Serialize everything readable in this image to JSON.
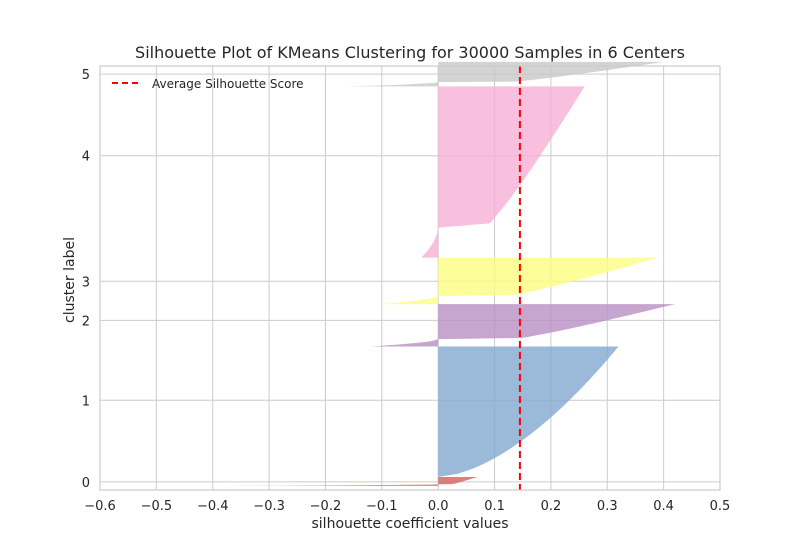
{
  "chart_data": {
    "type": "area",
    "title": "Silhouette Plot of KMeans Clustering for 30000 Samples in 6 Centers",
    "xlabel": "silhouette coefficient values",
    "ylabel": "cluster label",
    "xlim": [
      -0.6,
      0.5
    ],
    "ylim": [
      -0.1,
      5.1
    ],
    "x_ticks": [
      -0.6,
      -0.5,
      -0.4,
      -0.3,
      -0.2,
      -0.1,
      0.0,
      0.1,
      0.2,
      0.3,
      0.4,
      0.5
    ],
    "x_tick_labels": [
      "−0.6",
      "−0.5",
      "−0.4",
      "−0.3",
      "−0.2",
      "−0.1",
      "0.0",
      "0.1",
      "0.2",
      "0.3",
      "0.4",
      "0.5"
    ],
    "y_tick_labels": [
      "0",
      "1",
      "2",
      "3",
      "4",
      "5"
    ],
    "average_silhouette_score": 0.145,
    "legend": {
      "entries": [
        "Average Silhouette Score"
      ],
      "placement": "upper-left"
    },
    "grid": true,
    "clusters": [
      {
        "label": "0",
        "color": "#d65f5f",
        "y_start": -0.05,
        "y_end": 0.06,
        "max_value": 0.07,
        "min_value": -0.38
      },
      {
        "label": "1",
        "color": "#82a9d0",
        "y_start": 0.06,
        "y_end": 1.66,
        "max_value": 0.32,
        "min_value": 0.0
      },
      {
        "label": "2",
        "color": "#b88ec2",
        "y_start": 1.66,
        "y_end": 2.18,
        "max_value": 0.42,
        "min_value": -0.12
      },
      {
        "label": "3",
        "color": "#fdfd7f",
        "y_start": 2.18,
        "y_end": 2.75,
        "max_value": 0.39,
        "min_value": -0.1
      },
      {
        "label": "4",
        "color": "#f6b0d6",
        "y_start": 2.75,
        "y_end": 4.85,
        "max_value": 0.26,
        "min_value": -0.03
      },
      {
        "label": "5",
        "color": "#c8c8c8",
        "y_start": 4.85,
        "y_end": 5.15,
        "max_value": 0.4,
        "min_value": -0.16
      }
    ]
  }
}
